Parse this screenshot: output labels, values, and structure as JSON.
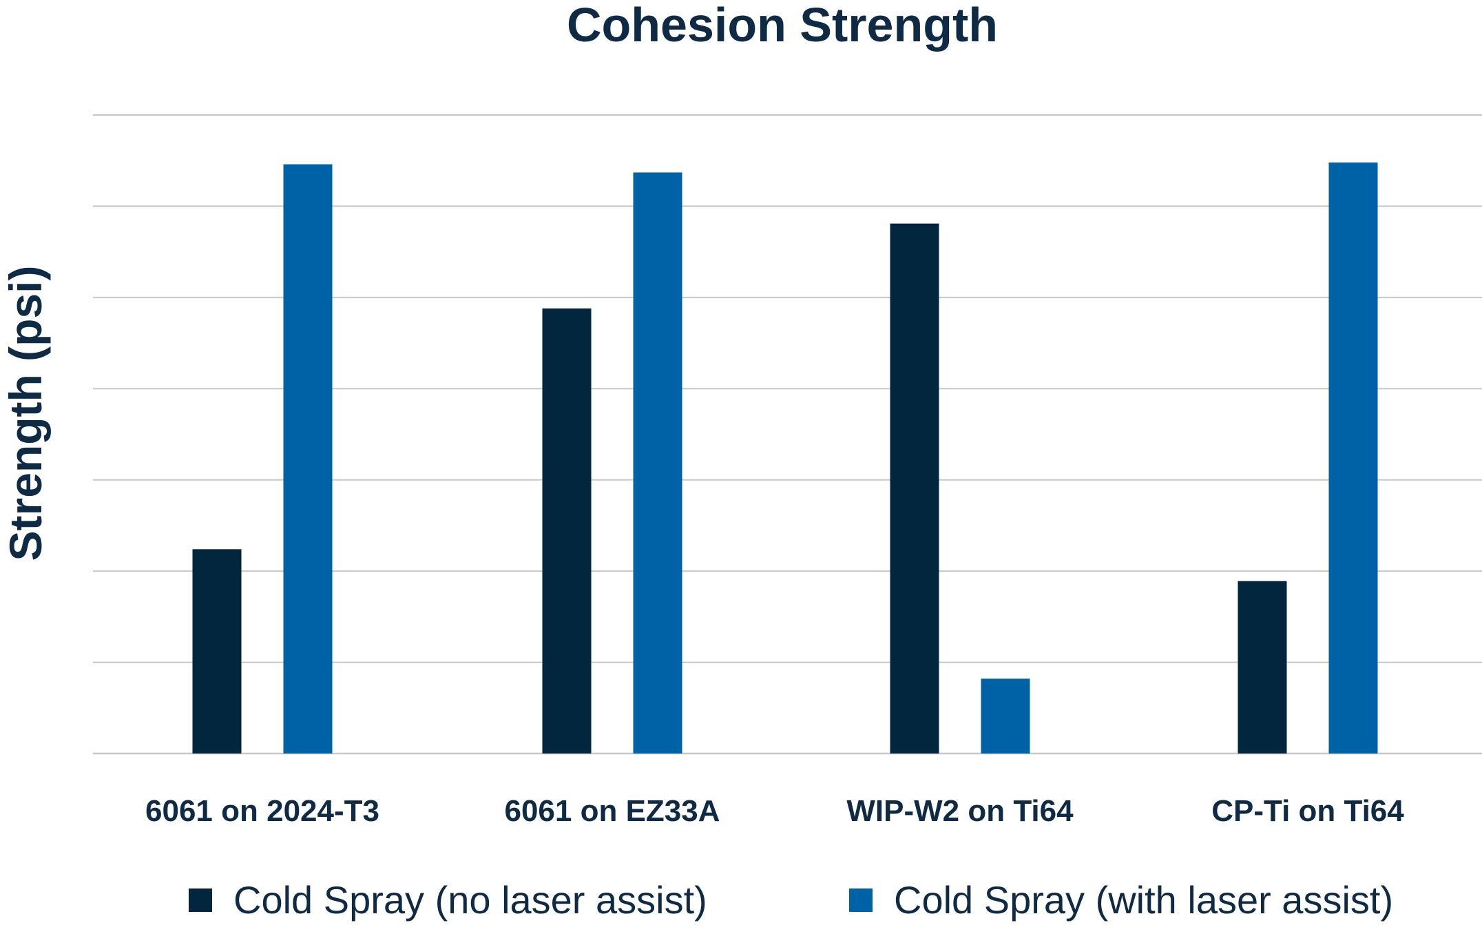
{
  "chart_data": {
    "type": "bar",
    "title": "Cohesion Strength",
    "xlabel": "",
    "ylabel": "Strength (psi)",
    "categories": [
      "6061 on 2024-T3",
      "6061 on EZ33A",
      "WIP-W2 on Ti64",
      "CP-Ti on Ti64"
    ],
    "series": [
      {
        "name": "Cold Spray (no laser assist)",
        "values": [
          2.24,
          4.88,
          5.81,
          1.89
        ]
      },
      {
        "name": "Cold Spray (with laser assist)",
        "values": [
          6.46,
          6.37,
          0.82,
          6.48
        ]
      }
    ],
    "ylim": [
      0,
      7
    ],
    "grid": true,
    "y_tick_labels_shown": false,
    "legend_position": "bottom",
    "colors": {
      "series_0": "#03263f",
      "series_1": "#0062a6",
      "text": "#0f2a44",
      "grid": "#c8c8c8"
    }
  }
}
